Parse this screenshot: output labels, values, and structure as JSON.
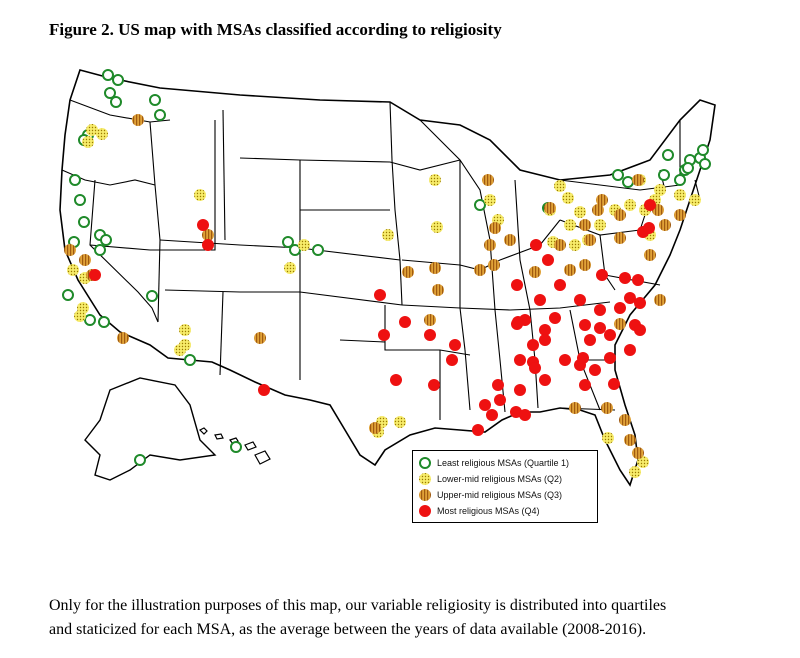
{
  "title": "Figure 2. US map with MSAs classified according to religiosity",
  "legend": {
    "q1": "Least religious MSAs (Quartile 1)",
    "q2": "Lower-mid religious MSAs (Q2)",
    "q3": "Upper-mid religious MSAs (Q3)",
    "q4": "Most religious MSAs (Q4)"
  },
  "caption": {
    "line1": "Only for the illustration purposes of this map, our variable religiosity is distributed into quartiles",
    "line2": "and staticized for each MSA, as the average between the years of data available (2008-2016)."
  },
  "colors": {
    "q1": "#1f8a2a",
    "q2_fill": "#f7ec6a",
    "q2_dot": "#9a7a00",
    "q3_fill": "#e0a238",
    "q3_stripe": "#a05a10",
    "q4": "#ee1111",
    "border": "#000000"
  }
}
